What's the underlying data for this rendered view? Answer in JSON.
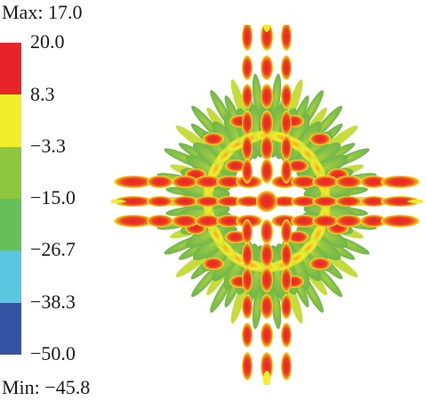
{
  "legend": {
    "max_label": "Max: 17.0",
    "min_label": "Min: −45.8",
    "ticks": [
      "20.0",
      "8.3",
      "−3.3",
      "−15.0",
      "−26.7",
      "−38.3",
      "−50.0"
    ],
    "bands": [
      {
        "color": "#e8232a"
      },
      {
        "color": "#f3ee2b"
      },
      {
        "color": "#8ec63f"
      },
      {
        "color": "#66bf5a"
      },
      {
        "color": "#59c7df"
      },
      {
        "color": "#3553a3"
      }
    ]
  },
  "colors": {
    "red": "#e8232a",
    "orange": "#f28a1e",
    "yellow": "#f3ee2b",
    "green": "#8ec63f",
    "green_dark": "#6fb64a"
  }
}
